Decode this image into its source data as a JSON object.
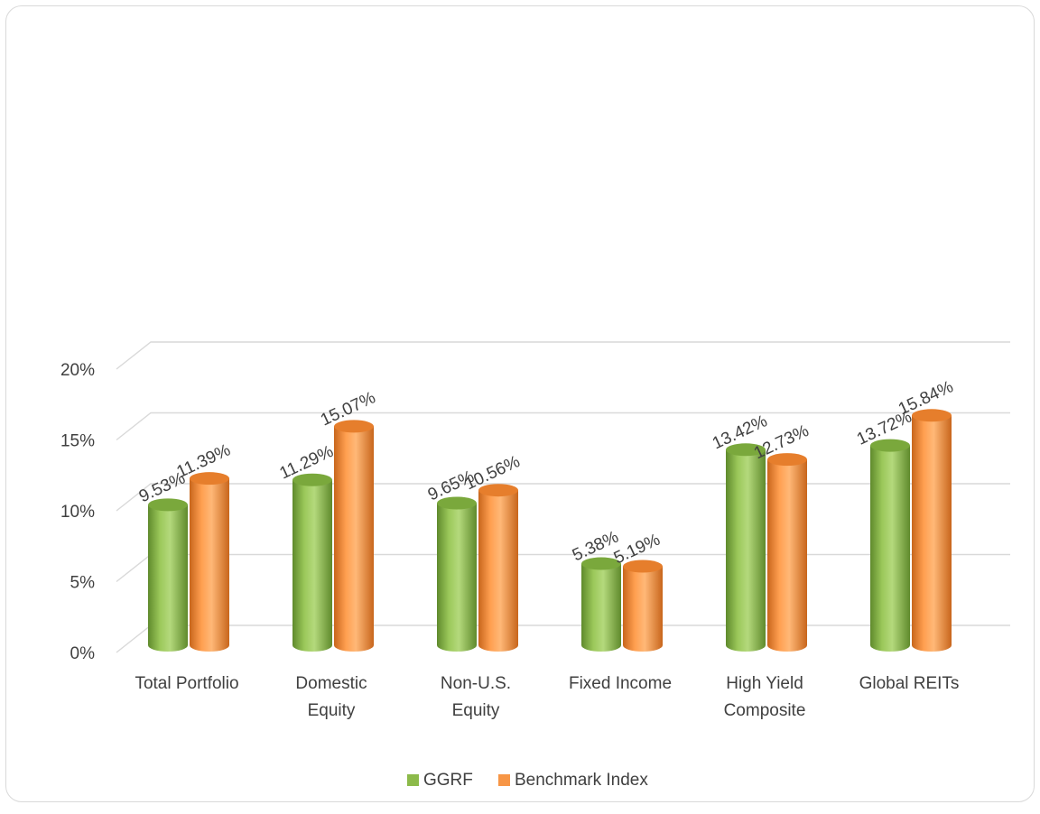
{
  "chart_data": {
    "type": "bar",
    "categories": [
      [
        "Total Portfolio"
      ],
      [
        "Domestic",
        "Equity"
      ],
      [
        "Non-U.S.",
        "Equity"
      ],
      [
        "Fixed Income"
      ],
      [
        "High Yield",
        "Composite"
      ],
      [
        "Global REITs"
      ]
    ],
    "series": [
      {
        "name": "GGRF",
        "color": "#8cba4a",
        "values": [
          9.53,
          11.29,
          9.65,
          5.38,
          13.42,
          13.72
        ],
        "labels": [
          "9.53%",
          "11.29%",
          "9.65%",
          "5.38%",
          "13.42%",
          "13.72%"
        ]
      },
      {
        "name": "Benchmark Index",
        "color": "#f79646",
        "values": [
          11.39,
          15.07,
          10.56,
          5.19,
          12.73,
          15.84
        ],
        "labels": [
          "11.39%",
          "15.07%",
          "10.56%",
          "5.19%",
          "12.73%",
          "15.84%"
        ]
      }
    ],
    "y_ticks": [
      0,
      5,
      10,
      15,
      20
    ],
    "y_tick_labels": [
      "0%",
      "5%",
      "10%",
      "15%",
      "20%"
    ],
    "ylim": [
      0,
      20
    ],
    "gridlines": true,
    "three_d": true,
    "bar_shape": "cylinder",
    "legend_position": "bottom"
  }
}
